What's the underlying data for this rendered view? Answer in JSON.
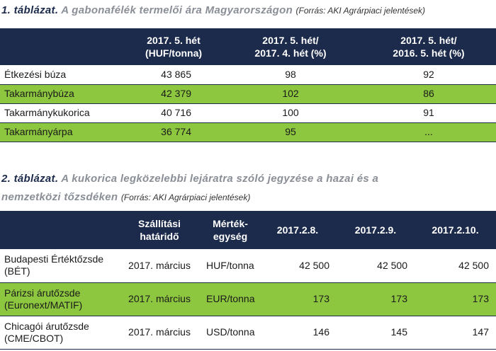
{
  "table1": {
    "caption": {
      "label": "1. táblázat.",
      "title": "A gabonafélék termelői ára Magyarországon",
      "source": "(Forrás: AKI Agrárpiaci jelentések)"
    },
    "header": [
      [
        ""
      ],
      [
        "2017. 5. hét",
        "(HUF/tonna)"
      ],
      [
        "2017. 5. hét/",
        "2017. 4. hét (%)"
      ],
      [
        "2017. 5. hét/",
        "2016. 5. hét (%)"
      ]
    ],
    "rows": [
      [
        "Étkezési búza",
        "43 865",
        "98",
        "92"
      ],
      [
        "Takarmánybúza",
        "42 379",
        "102",
        "86"
      ],
      [
        "Takarmánykukorica",
        "40 716",
        "100",
        "91"
      ],
      [
        "Takarmányárpa",
        "36 774",
        "95",
        "..."
      ]
    ]
  },
  "table2": {
    "caption": {
      "label": "2. táblázat.",
      "title": "A kukorica legközelebbi lejáratra szóló jegyzése a hazai és a nemzetközi tőzsdéken",
      "source": "(Forrás: AKI Agrárpiaci jelentések)"
    },
    "header": [
      [
        ""
      ],
      [
        "Szállítási",
        "határidő"
      ],
      [
        "Mérték-",
        "egység"
      ],
      [
        "2017.2.8."
      ],
      [
        "2017.2.9."
      ],
      [
        "2017.2.10."
      ]
    ],
    "rows": [
      [
        "Budapesti Értéktőzsde (BÉT)",
        "2017. március",
        "HUF/tonna",
        "42 500",
        "42 500",
        "42 500"
      ],
      [
        "Párizsi árutőzsde (Euronext/MATIF)",
        "2017. március",
        "EUR/tonna",
        "173",
        "173",
        "173"
      ],
      [
        "Chicagói árutőzsde (CME/CBOT)",
        "2017. március",
        "USD/tonna",
        "146",
        "145",
        "147"
      ]
    ]
  }
}
